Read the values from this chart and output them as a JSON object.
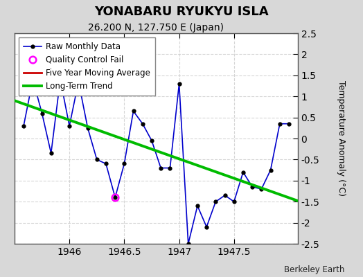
{
  "title": "YONABARU RYUKYU ISLA",
  "subtitle": "26.200 N, 127.750 E (Japan)",
  "ylabel": "Temperature Anomaly (°C)",
  "credit": "Berkeley Earth",
  "ylim": [
    -2.5,
    2.5
  ],
  "xlim": [
    1945.5,
    1948.08
  ],
  "xticks": [
    1946,
    1946.5,
    1947,
    1947.5
  ],
  "xtick_labels": [
    "1946",
    "1946.5",
    "1947",
    "1947.5"
  ],
  "yticks": [
    -2.5,
    -2,
    -1.5,
    -1,
    -0.5,
    0,
    0.5,
    1,
    1.5,
    2,
    2.5
  ],
  "ytick_labels": [
    "-2.5",
    "-2",
    "-1.5",
    "-1",
    "-0.5",
    "0",
    "0.5",
    "1",
    "1.5",
    "2",
    "2.5"
  ],
  "raw_x": [
    1945.583,
    1945.667,
    1945.75,
    1945.833,
    1945.917,
    1946.0,
    1946.083,
    1946.167,
    1946.25,
    1946.333,
    1946.417,
    1946.5,
    1946.583,
    1946.667,
    1946.75,
    1946.833,
    1946.917,
    1947.0,
    1947.083,
    1947.167,
    1947.25,
    1947.333,
    1947.417,
    1947.5,
    1947.583,
    1947.667,
    1947.75,
    1947.833,
    1947.917,
    1948.0
  ],
  "raw_y": [
    0.3,
    1.4,
    0.6,
    -0.35,
    1.4,
    0.3,
    1.35,
    0.25,
    -0.5,
    -0.6,
    -1.4,
    -0.6,
    0.65,
    0.35,
    -0.05,
    -0.7,
    -0.7,
    1.3,
    -2.5,
    -1.6,
    -2.1,
    -1.5,
    -1.35,
    -1.5,
    -0.8,
    -1.15,
    -1.2,
    -0.75,
    0.35,
    0.35
  ],
  "qc_fail_x": [
    1946.417
  ],
  "qc_fail_y": [
    -1.4
  ],
  "trend_x": [
    1945.5,
    1948.08
  ],
  "trend_y": [
    0.9,
    -1.48
  ],
  "raw_color": "#0000cc",
  "raw_dot_color": "#000000",
  "qc_color": "#ff00ff",
  "trend_color": "#00bb00",
  "ma_color": "#cc0000",
  "fig_background": "#d8d8d8",
  "plot_background": "#ffffff",
  "grid_color": "#cccccc"
}
